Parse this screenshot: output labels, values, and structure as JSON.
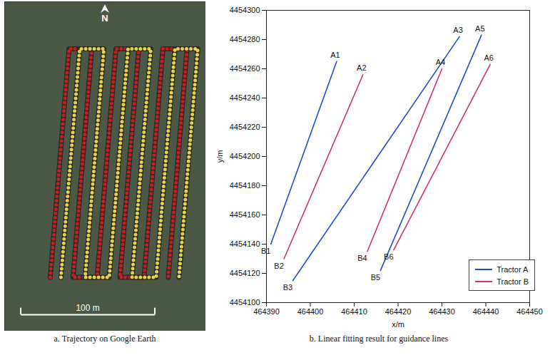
{
  "chart_data": [
    {
      "type": "map",
      "title": "a. Trajectory on Google Earth",
      "north_label": "N",
      "scale_bar": {
        "length": 100,
        "label": "100 m"
      },
      "xlim": [
        -34,
        116
      ],
      "ylim": [
        -35,
        210
      ],
      "tick_labels": false,
      "series": [
        {
          "color": "#c41e1e",
          "x": [
            0,
            14,
            31,
            17,
            35,
            49,
            66,
            52,
            70,
            84,
            102,
            88
          ],
          "y": [
            5,
            175,
            175,
            5,
            5,
            175,
            175,
            5,
            5,
            175,
            175,
            5
          ]
        },
        {
          "color": "#e6d24a",
          "x": [
            8,
            22,
            40,
            26,
            44,
            58,
            75,
            61,
            79,
            93,
            110,
            96
          ],
          "y": [
            5,
            175,
            175,
            5,
            5,
            175,
            175,
            5,
            5,
            175,
            175,
            5
          ]
        }
      ]
    },
    {
      "type": "line",
      "title": "b. Linear fitting result for guidance lines",
      "x_label": "x/m",
      "y_label": "y/m",
      "xlim": [
        464390,
        464450
      ],
      "ylim": [
        4454100,
        4454300
      ],
      "xticks": [
        464390,
        464400,
        464410,
        464420,
        464430,
        464440,
        464450
      ],
      "yticks": [
        4454100,
        4454120,
        4454140,
        4454160,
        4454180,
        4454200,
        4454220,
        4454240,
        4454260,
        4454280,
        4454300
      ],
      "grid": false,
      "legend": "bottom-right",
      "series": [
        {
          "name": "Tractor A",
          "color": "#1f4fd0",
          "lines": [
            {
              "start_label": "B1",
              "end_label": "A1",
              "x": [
                464391,
                464406
              ],
              "y": [
                4454140,
                4454265
              ]
            },
            {
              "start_label": "B3",
              "end_label": "A3",
              "x": [
                464396,
                464434
              ],
              "y": [
                4454115,
                4454282
              ]
            },
            {
              "start_label": "B5",
              "end_label": "A5",
              "x": [
                464416,
                464439
              ],
              "y": [
                4454122,
                4454283
              ]
            }
          ]
        },
        {
          "name": "Tractor B",
          "color": "#d0307a",
          "lines": [
            {
              "start_label": "B2",
              "end_label": "A2",
              "x": [
                464394,
                464412
              ],
              "y": [
                4454130,
                4454256
              ]
            },
            {
              "start_label": "B4",
              "end_label": "A4",
              "x": [
                464413,
                464430
              ],
              "y": [
                4454135,
                4454260
              ]
            },
            {
              "start_label": "B6",
              "end_label": "A6",
              "x": [
                464419,
                464441
              ],
              "y": [
                4454136,
                4454263
              ]
            }
          ]
        }
      ]
    }
  ]
}
